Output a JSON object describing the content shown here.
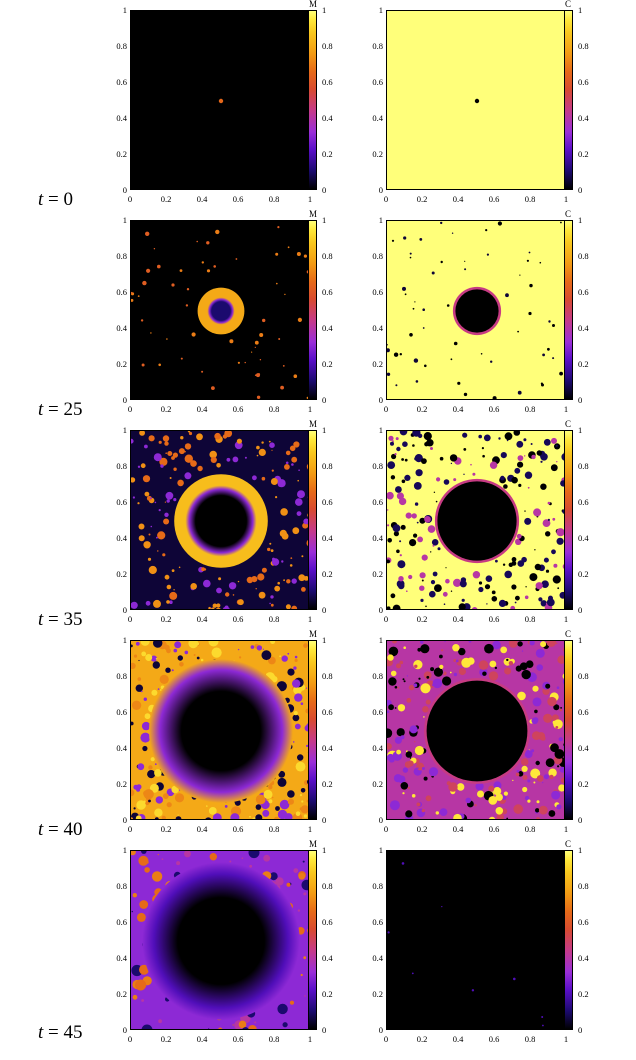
{
  "chart_data": {
    "type": "heatmap",
    "layout": "5 rows (time snapshots) x 2 columns (fields M and C)",
    "fields": [
      "M",
      "C"
    ],
    "x_range": [
      0,
      1
    ],
    "y_range": [
      0,
      1
    ],
    "x_ticks": [
      "0",
      "0.2",
      "0.4",
      "0.6",
      "0.8",
      "1"
    ],
    "y_ticks": [
      "0",
      "0.2",
      "0.4",
      "0.6",
      "0.8",
      "1"
    ],
    "colorbar_range": [
      0,
      1
    ],
    "colorbar_ticks": [
      "0",
      "0.2",
      "0.4",
      "0.6",
      "0.8",
      "1"
    ],
    "colormap": "black-purple-red-orange-yellow",
    "colormap_colors": [
      "#000000",
      "#5a0fc8",
      "#c53a8a",
      "#e66a18",
      "#f9c81e",
      "#ffff7a"
    ],
    "rows": [
      {
        "t_symbol": "t",
        "t_equals": "= 0",
        "M": {
          "background_value": 0.0,
          "center": [
            0.5,
            0.5
          ],
          "feature": "single small spot",
          "spot_value": 0.65
        },
        "C": {
          "background_value": 1.0,
          "center": [
            0.5,
            0.5
          ],
          "feature": "single small hole",
          "spot_value": 0.0
        }
      },
      {
        "t_symbol": "t",
        "t_equals": "= 25",
        "M": {
          "background_value": 0.0,
          "center": [
            0.5,
            0.5
          ],
          "ring_outer_radius": 0.13,
          "ring_value": 0.8,
          "core_value": 0.1,
          "background_speckle": "sparse"
        },
        "C": {
          "background_value": 1.0,
          "center": [
            0.5,
            0.5
          ],
          "hole_radius": 0.12,
          "hole_value": 0.0,
          "background_speckle": "sparse"
        }
      },
      {
        "t_symbol": "t",
        "t_equals": "= 35",
        "M": {
          "background_value": 0.05,
          "center": [
            0.5,
            0.5
          ],
          "ring_outer_radius": 0.26,
          "ring_value": 0.85,
          "core_value": 0.0,
          "background_speckle": "dense orange blobs"
        },
        "C": {
          "background_value": 1.0,
          "center": [
            0.5,
            0.5
          ],
          "hole_radius": 0.22,
          "hole_value": 0.0,
          "background_speckle": "dense dark holes"
        }
      },
      {
        "t_symbol": "t",
        "t_equals": "= 40",
        "M": {
          "background_value": 0.8,
          "center": [
            0.5,
            0.5
          ],
          "ring_outer_radius": 0.32,
          "ring_value": 0.3,
          "core_value": 0.0,
          "background_speckle": "orange-yellow mottled"
        },
        "C": {
          "background_value": 0.4,
          "center": [
            0.5,
            0.5
          ],
          "hole_radius": 0.28,
          "hole_value": 0.0,
          "background_speckle": "yellow-purple network"
        }
      },
      {
        "t_symbol": "t",
        "t_equals": "= 45",
        "M": {
          "background_value": 0.3,
          "center": [
            0.5,
            0.5
          ],
          "ring_outer_radius": 0.35,
          "ring_value": 0.2,
          "core_value": 0.0,
          "background_speckle": "purple with orange patches"
        },
        "C": {
          "background_value": 0.0,
          "center": [
            0.5,
            0.5
          ],
          "feature": "nearly all black"
        }
      }
    ]
  }
}
